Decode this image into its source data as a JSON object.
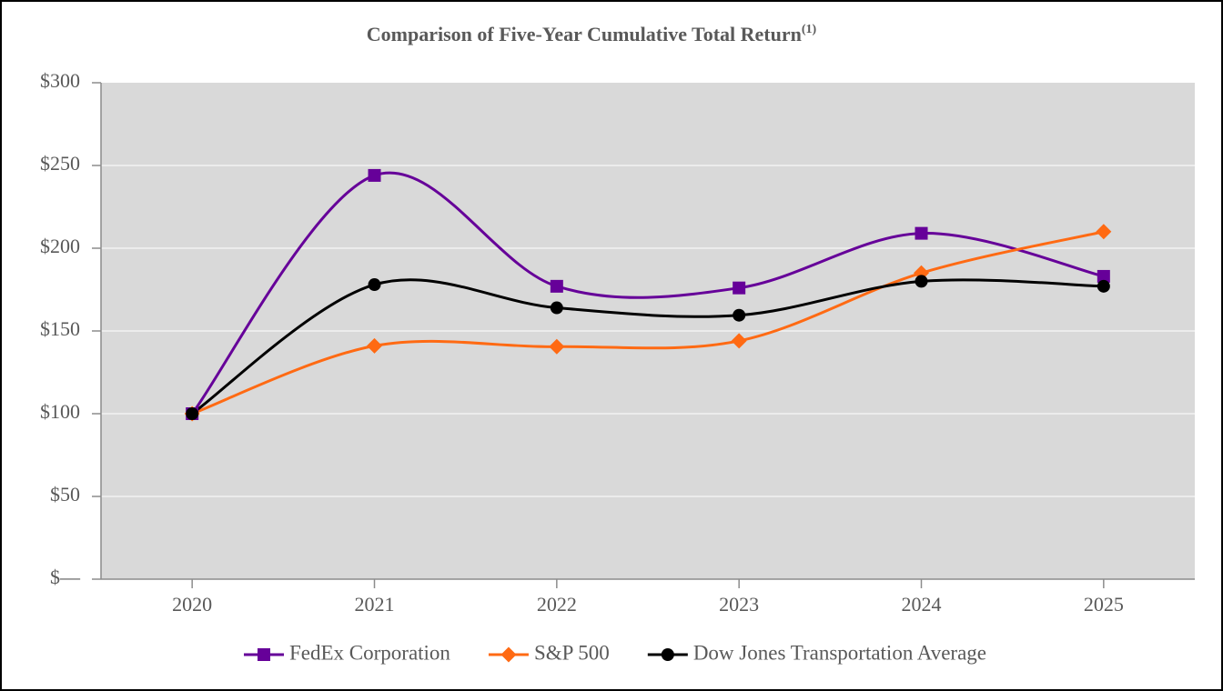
{
  "chart_data": {
    "type": "line",
    "title": "Comparison of Five-Year Cumulative Total Return",
    "title_superscript": "(1)",
    "categories": [
      "2020",
      "2021",
      "2022",
      "2023",
      "2024",
      "2025"
    ],
    "series": [
      {
        "name": "FedEx Corporation",
        "color": "#660099",
        "marker": "square",
        "values": [
          100,
          244,
          177,
          176,
          209,
          183
        ]
      },
      {
        "name": "S&P 500",
        "color": "#ff6a13",
        "marker": "diamond",
        "values": [
          100,
          141,
          140.5,
          144,
          185,
          210
        ]
      },
      {
        "name": "Dow Jones Transportation Average",
        "color": "#000000",
        "marker": "circle",
        "values": [
          100,
          178,
          164,
          159.5,
          180,
          177
        ]
      }
    ],
    "ylim": [
      0,
      300
    ],
    "yticks": [
      {
        "value": 0,
        "label": "$—"
      },
      {
        "value": 50,
        "label": "$50"
      },
      {
        "value": 100,
        "label": "$100"
      },
      {
        "value": 150,
        "label": "$150"
      },
      {
        "value": 200,
        "label": "$200"
      },
      {
        "value": 250,
        "label": "$250"
      },
      {
        "value": 300,
        "label": "$300"
      }
    ],
    "grid": true,
    "smooth": true,
    "legend": "bottom"
  }
}
